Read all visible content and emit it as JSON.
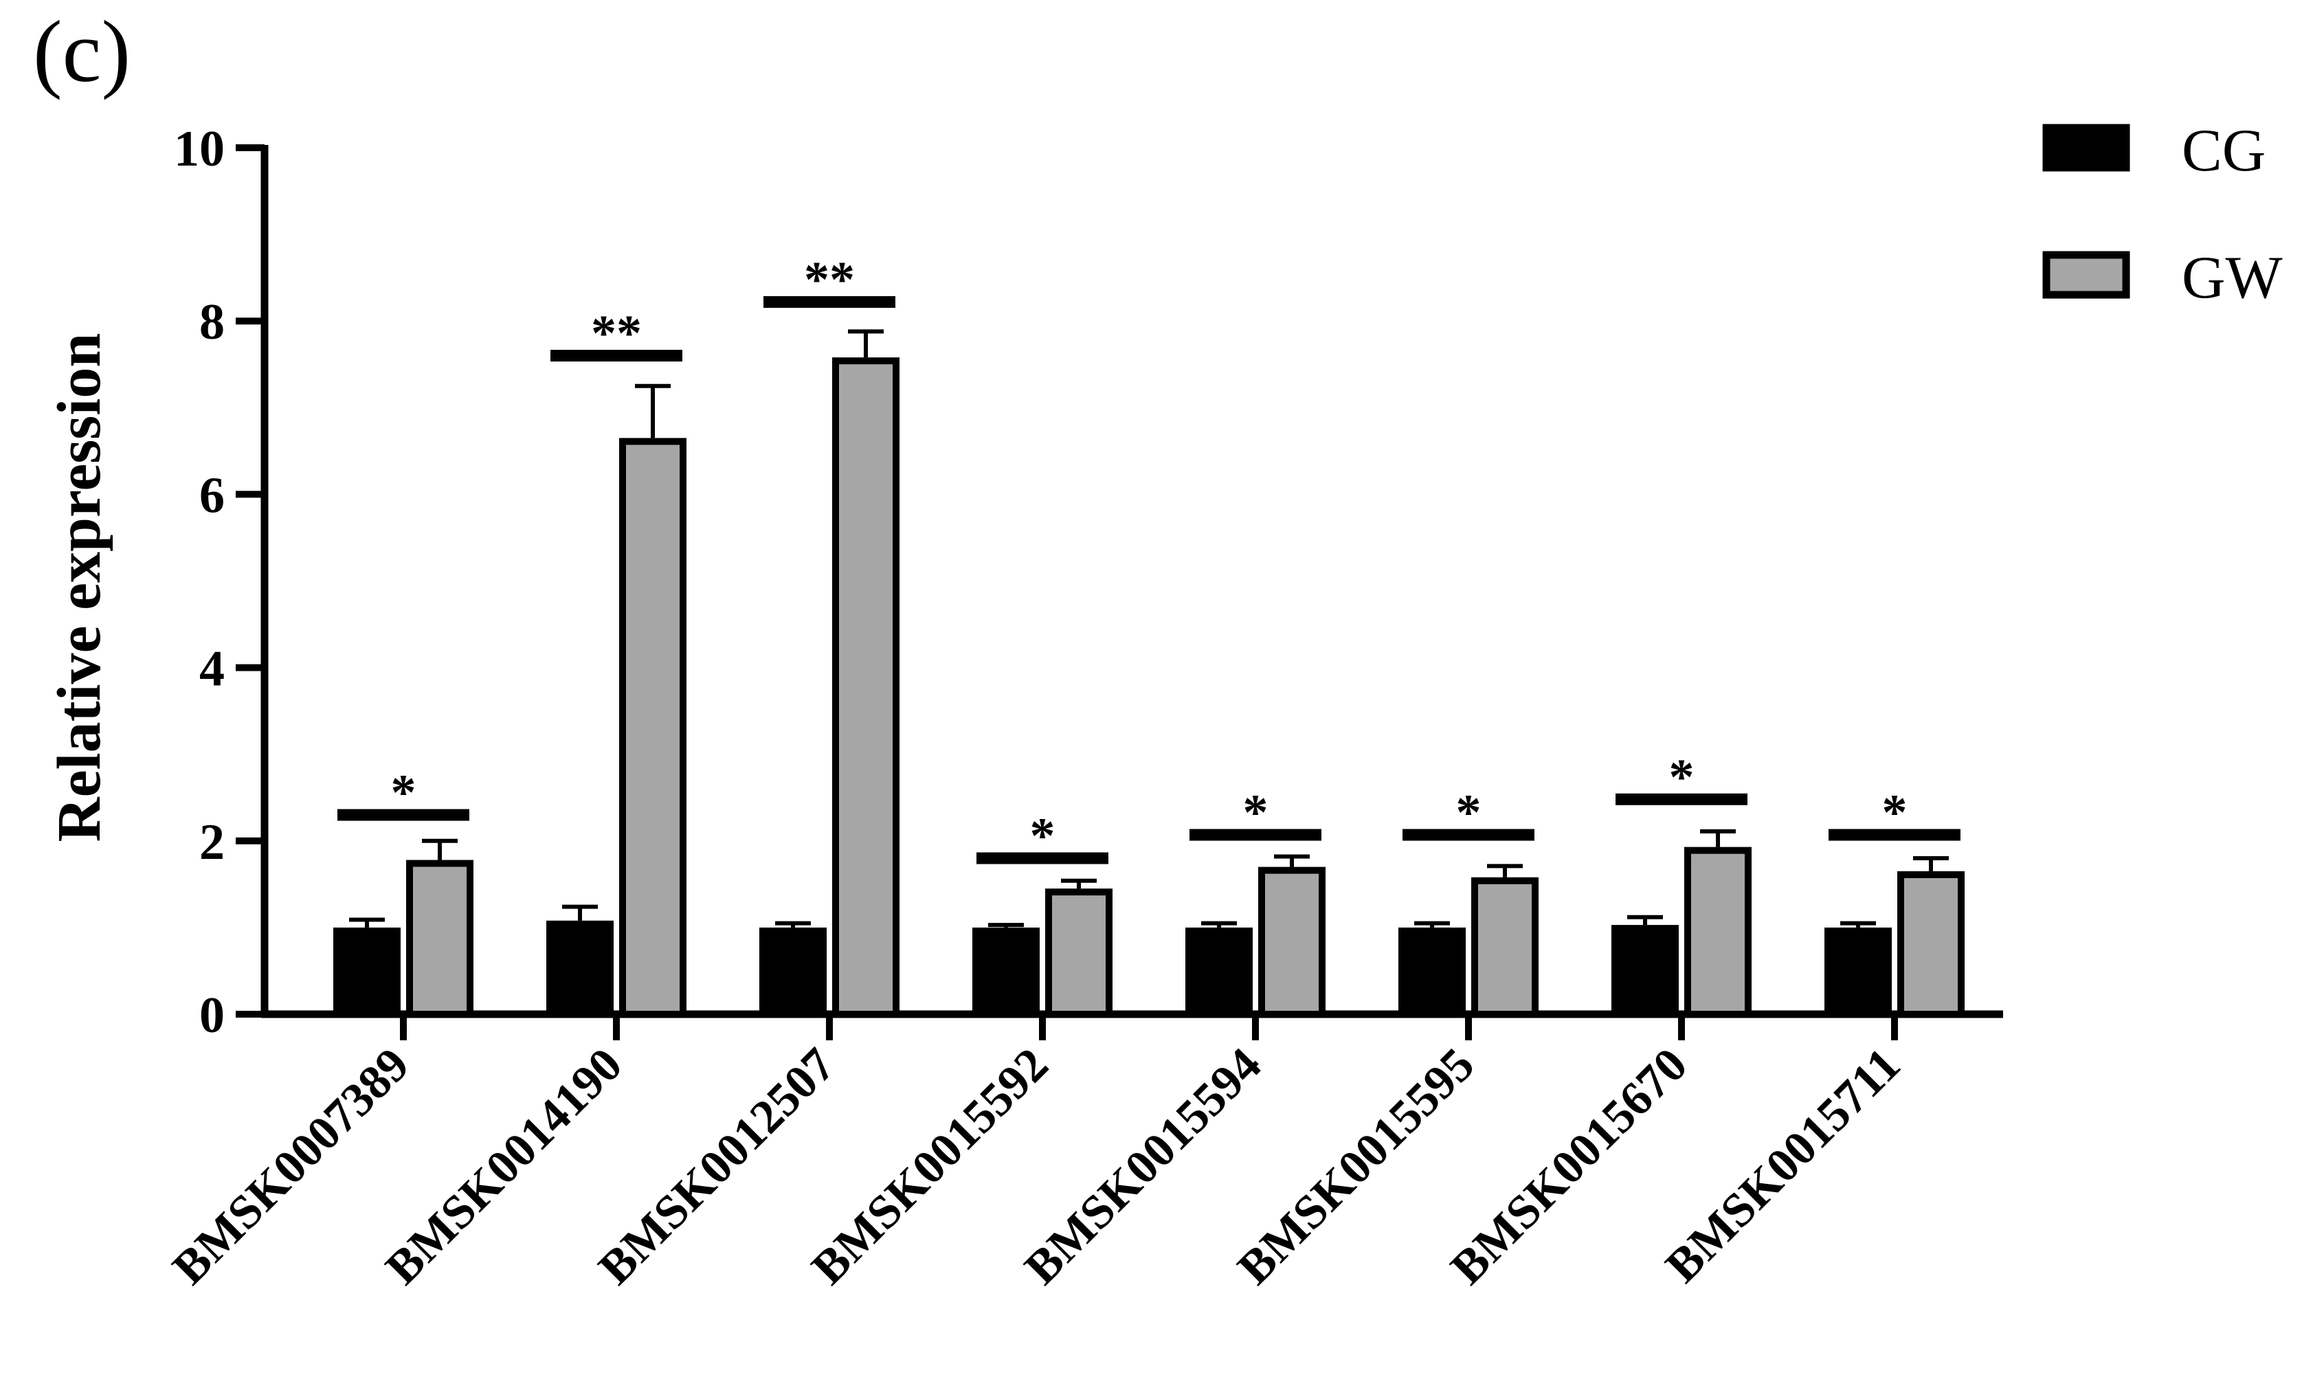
{
  "panel_label": "(c)",
  "chart_data": {
    "type": "bar",
    "title": "",
    "xlabel": "",
    "ylabel": "Relative expression",
    "ylim": [
      0,
      10
    ],
    "yticks": [
      0,
      2,
      4,
      6,
      8,
      10
    ],
    "grid": false,
    "legend_position": "top-right",
    "categories": [
      "BMSK0007389",
      "BMSK0014190",
      "BMSK0012507",
      "BMSK0015592",
      "BMSK0015594",
      "BMSK0015595",
      "BMSK0015670",
      "BMSK0015711"
    ],
    "series": [
      {
        "name": "CG",
        "color": "#000000",
        "values": [
          1.0,
          1.08,
          1.0,
          1.0,
          1.0,
          1.0,
          1.03,
          1.0
        ],
        "errors": [
          0.09,
          0.16,
          0.05,
          0.03,
          0.05,
          0.05,
          0.09,
          0.05
        ]
      },
      {
        "name": "GW",
        "color": "#a6a6a6",
        "values": [
          1.78,
          6.65,
          7.58,
          1.45,
          1.7,
          1.58,
          1.93,
          1.65
        ],
        "errors": [
          0.22,
          0.6,
          0.3,
          0.09,
          0.12,
          0.13,
          0.18,
          0.15
        ]
      }
    ],
    "significance": [
      {
        "label": "*",
        "bar_y": 2.3
      },
      {
        "label": "**",
        "bar_y": 7.6
      },
      {
        "label": "**",
        "bar_y": 8.22
      },
      {
        "label": "*",
        "bar_y": 1.8
      },
      {
        "label": "*",
        "bar_y": 2.07
      },
      {
        "label": "*",
        "bar_y": 2.07
      },
      {
        "label": "*",
        "bar_y": 2.48
      },
      {
        "label": "*",
        "bar_y": 2.07
      }
    ]
  }
}
